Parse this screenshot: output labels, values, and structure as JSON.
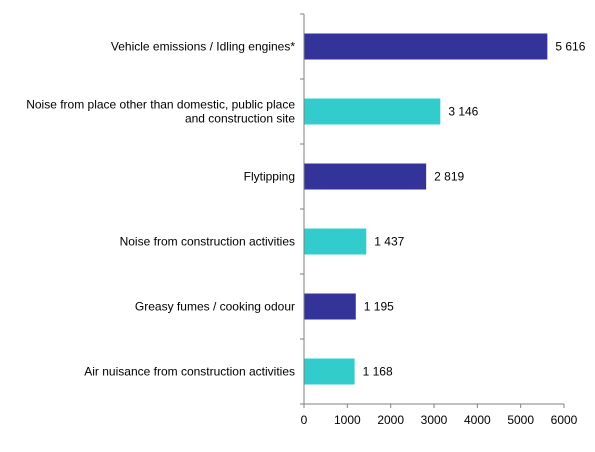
{
  "chart_data": {
    "type": "bar",
    "orientation": "horizontal",
    "categories": [
      [
        "Vehicle emissions / Idling engines*"
      ],
      [
        "Noise from place other than domestic, public place",
        "and construction site"
      ],
      [
        "Flytipping"
      ],
      [
        "Noise from construction activities"
      ],
      [
        "Greasy fumes / cooking odour"
      ],
      [
        "Air nuisance from construction activities"
      ]
    ],
    "values": [
      5616,
      3146,
      2819,
      1437,
      1195,
      1168
    ],
    "value_labels": [
      "5 616",
      "3 146",
      "2 819",
      "1 437",
      "1 195",
      "1 168"
    ],
    "bar_colors": [
      "#333399",
      "#33CCCC",
      "#333399",
      "#33CCCC",
      "#333399",
      "#33CCCC"
    ],
    "xlim": [
      0,
      6000
    ],
    "x_ticks": [
      0,
      1000,
      2000,
      3000,
      4000,
      5000,
      6000
    ],
    "grid": false,
    "legend": "none"
  }
}
